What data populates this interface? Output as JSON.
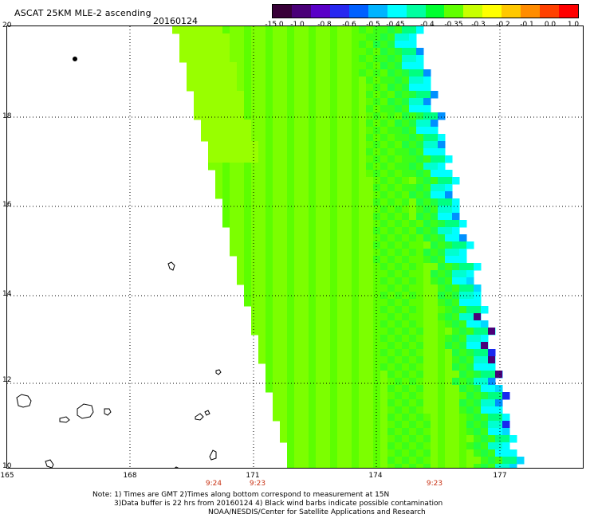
{
  "header": {
    "title": "ASCAT 25KM MLE-2 ascending",
    "date": "20160124"
  },
  "colorbar": {
    "labels": [
      "-15.0",
      "-1.0",
      "-0.8",
      "-0.6",
      "-0.5",
      "-0.45",
      "-0.4",
      "-0.35",
      "-0.3",
      "-0.2",
      "-0.1",
      "0.0",
      "1.0"
    ],
    "colors": [
      "#380038",
      "#4a0078",
      "#5a00c8",
      "#2828f0",
      "#0060ff",
      "#00b4ff",
      "#00ffff",
      "#00ffa0",
      "#00ff30",
      "#60ff00",
      "#c8ff00",
      "#ffff00",
      "#ffc800",
      "#ff8c00",
      "#ff4000",
      "#ff0000"
    ]
  },
  "map": {
    "lat_labels": [
      "20",
      "18",
      "16",
      "14",
      "12",
      "10"
    ],
    "lon_labels": [
      "165",
      "168",
      "171",
      "174",
      "177"
    ],
    "time_labels": [
      "9:24",
      "9:23",
      "9:23"
    ]
  },
  "notes": {
    "line1": "Note: 1) Times are GMT 2)Times along bottom correspond to measurement at 15N",
    "line2": "3)Data buffer is 22 hrs from 20160124 4) Black wind barbs indicate possible contamination",
    "line3": "NOAA/NESDIS/Center for Satellite Applications and Research"
  },
  "style": {
    "field_colors": [
      "#98ff00",
      "#7cff00",
      "#5cff00",
      "#3cff18",
      "#20ff40",
      "#00ff80",
      "#00ffd0",
      "#00ffff",
      "#00d8ff",
      "#0090ff",
      "#1828f0",
      "#4a0078"
    ],
    "time_color": "#c83214"
  }
}
